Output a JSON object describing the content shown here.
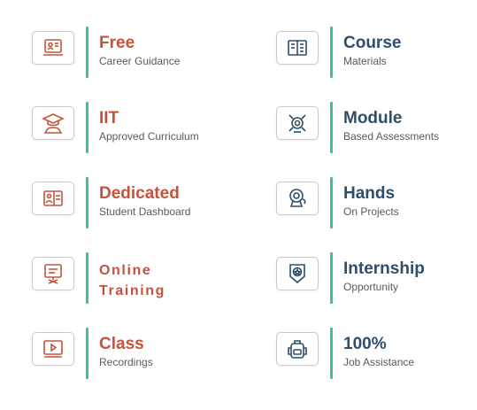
{
  "left_column": [
    {
      "title": "Free",
      "subtitle": "Career Guidance",
      "icon": "career-guidance-icon"
    },
    {
      "title": "IIT",
      "subtitle": "Approved Curriculum",
      "icon": "graduation-cap-icon"
    },
    {
      "title": "Dedicated",
      "subtitle": "Student Dashboard",
      "icon": "dashboard-icon"
    },
    {
      "title_line1": "Online",
      "title_line2": "Training",
      "icon": "online-training-icon"
    },
    {
      "title": "Class",
      "subtitle": "Recordings",
      "icon": "video-play-icon"
    }
  ],
  "right_column": [
    {
      "title": "Course",
      "subtitle": "Materials",
      "icon": "book-icon"
    },
    {
      "title": "Module",
      "subtitle": "Based Assessments",
      "icon": "assessment-icon"
    },
    {
      "title": "Hands",
      "subtitle": "On Projects",
      "icon": "webcam-icon"
    },
    {
      "title": "Internship",
      "subtitle": "Opportunity",
      "icon": "badge-icon"
    },
    {
      "title": "100%",
      "subtitle": "Job Assistance",
      "icon": "backpack-icon"
    }
  ],
  "colors": {
    "left_accent": "#c5533c",
    "right_accent": "#2f4e6c",
    "bar": "#3dbfa3"
  }
}
